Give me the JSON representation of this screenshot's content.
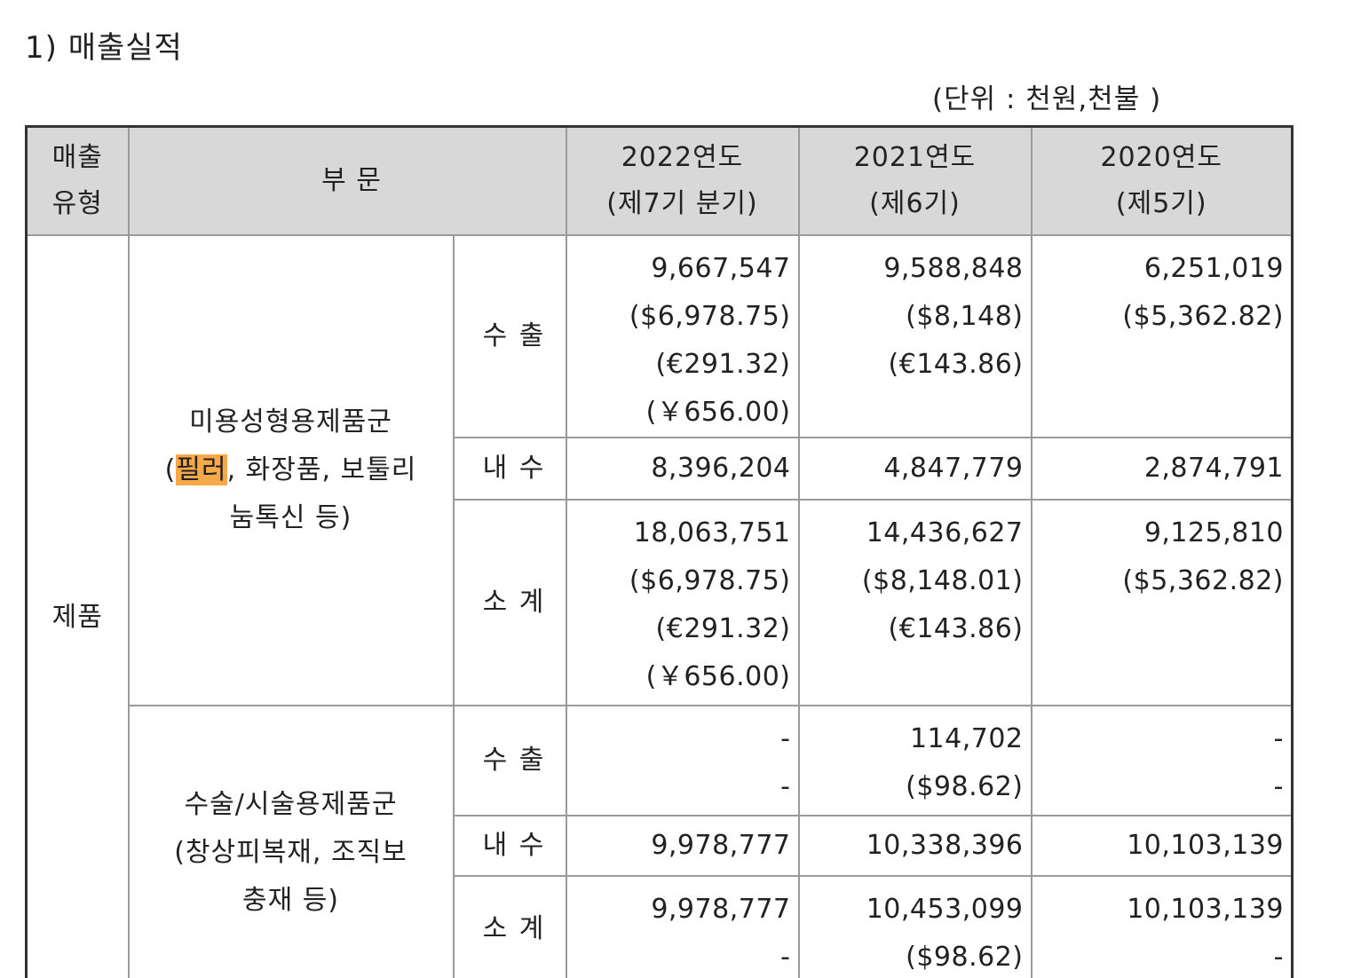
{
  "title": "1) 매출실적",
  "unit": "(단위 : 천원,천불 )",
  "headers": {
    "type": [
      "매출",
      "유형"
    ],
    "division": "부 문",
    "y2022": [
      "2022연도",
      "(제7기 분기)"
    ],
    "y2021": [
      "2021연도",
      "(제6기)"
    ],
    "y2020": [
      "2020연도",
      "(제5기)"
    ]
  },
  "type_label": "제품",
  "groups": [
    {
      "name_line1": "미용성형용제품군",
      "name_open": "(",
      "name_highlight": "필러",
      "name_rest": ", 화장품, 보툴리",
      "name_line3": "눔톡신 등)",
      "rows": [
        {
          "label": "수 출",
          "y2022": [
            "9,667,547",
            "($6,978.75)",
            "(€291.32)",
            "(￥656.00)"
          ],
          "y2021": [
            "9,588,848",
            "($8,148)",
            "(€143.86)"
          ],
          "y2020": [
            "6,251,019",
            "($5,362.82)"
          ]
        },
        {
          "label": "내 수",
          "y2022": [
            "8,396,204"
          ],
          "y2021": [
            "4,847,779"
          ],
          "y2020": [
            "2,874,791"
          ]
        },
        {
          "label": "소 계",
          "y2022": [
            "18,063,751",
            "($6,978.75)",
            "(€291.32)",
            "(￥656.00)"
          ],
          "y2021": [
            "14,436,627",
            "($8,148.01)",
            "(€143.86)"
          ],
          "y2020": [
            "9,125,810",
            "($5,362.82)"
          ]
        }
      ]
    },
    {
      "name_line1": "수술/시술용제품군",
      "name_line2": "(창상피복재, 조직보",
      "name_line3": "충재 등)",
      "rows": [
        {
          "label": "수 출",
          "y2022": [
            "-",
            "-"
          ],
          "y2021": [
            "114,702",
            "($98.62)"
          ],
          "y2020": [
            "-",
            "-"
          ]
        },
        {
          "label": "내 수",
          "y2022": [
            "9,978,777"
          ],
          "y2021": [
            "10,338,396"
          ],
          "y2020": [
            "10,103,139"
          ]
        },
        {
          "label": "소 계",
          "y2022": [
            "9,978,777",
            "-"
          ],
          "y2021": [
            "10,453,099",
            "($98.62)"
          ],
          "y2020": [
            "10,103,139",
            "-"
          ]
        }
      ]
    }
  ]
}
